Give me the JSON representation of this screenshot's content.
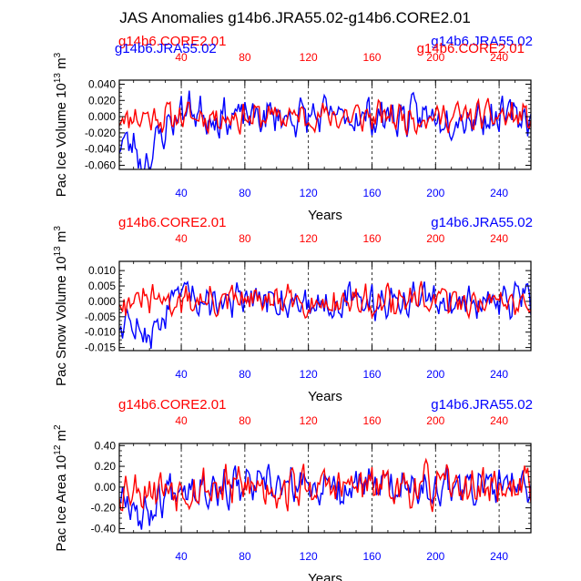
{
  "title": "JAS Anomalies g14b6.JRA55.02-g14b6.CORE2.01",
  "colors": {
    "core": "#ff0000",
    "jra": "#0000ff",
    "axis": "#000000"
  },
  "chart_data": [
    {
      "type": "line",
      "name": "pac-ice-volume",
      "ylabel_main": "Pac Ice Volume 10",
      "ylabel_exp": "13",
      "ylabel_unit": " m",
      "ylabel_unit_exp": "3",
      "xlabel": "Years",
      "xlim": [
        1,
        260
      ],
      "ylim": [
        -0.065,
        0.045
      ],
      "yticks": [
        -0.06,
        -0.04,
        -0.02,
        0.0,
        0.02,
        0.04
      ],
      "ytick_labels": [
        "-0.060",
        "-0.040",
        "-0.020",
        "0.000",
        "0.020",
        "0.040"
      ],
      "xticks": [
        40,
        80,
        120,
        160,
        200,
        240
      ],
      "xtick_labels": [
        "40",
        "80",
        "120",
        "160",
        "200",
        "240"
      ],
      "gridlines": [
        40,
        80,
        120,
        160,
        200,
        240
      ],
      "series_labels": {
        "top_left": "g14b6.CORE2.01",
        "top_right": "g14b6.JRA55.02",
        "overlap_left": "g14b6.JRA55.02",
        "overlap_right": "g14b6.CORE2.01"
      },
      "series": [
        {
          "name": "g14b6.CORE2.01",
          "color": "#ff0000",
          "seed": 11,
          "amp": 0.014,
          "osc": 0.006,
          "trend": []
        },
        {
          "name": "g14b6.JRA55.02",
          "color": "#0000ff",
          "seed": 23,
          "amp": 0.018,
          "osc": 0.006,
          "trend": [
            [
              1,
              -0.03
            ],
            [
              10,
              -0.035
            ],
            [
              15,
              -0.055
            ],
            [
              20,
              -0.05
            ],
            [
              28,
              -0.02
            ],
            [
              38,
              0.005
            ],
            [
              45,
              0.01
            ],
            [
              60,
              0.0
            ]
          ]
        }
      ]
    },
    {
      "type": "line",
      "name": "pac-snow-volume",
      "ylabel_main": "Pac Snow Volume 10",
      "ylabel_exp": "13",
      "ylabel_unit": " m",
      "ylabel_unit_exp": "3",
      "xlabel": "Years",
      "xlim": [
        1,
        260
      ],
      "ylim": [
        -0.016,
        0.013
      ],
      "yticks": [
        -0.015,
        -0.01,
        -0.005,
        0.0,
        0.005,
        0.01
      ],
      "ytick_labels": [
        "-0.015",
        "-0.010",
        "-0.005",
        "0.000",
        "0.005",
        "0.010"
      ],
      "xticks": [
        40,
        80,
        120,
        160,
        200,
        240
      ],
      "xtick_labels": [
        "40",
        "80",
        "120",
        "160",
        "200",
        "240"
      ],
      "gridlines": [
        40,
        80,
        120,
        160,
        200,
        240
      ],
      "series_labels": {
        "top_left": "g14b6.CORE2.01",
        "top_right": "g14b6.JRA55.02"
      },
      "series": [
        {
          "name": "g14b6.CORE2.01",
          "color": "#ff0000",
          "seed": 31,
          "amp": 0.0038,
          "osc": 0.0018,
          "trend": []
        },
        {
          "name": "g14b6.JRA55.02",
          "color": "#0000ff",
          "seed": 47,
          "amp": 0.0045,
          "osc": 0.0018,
          "trend": [
            [
              1,
              -0.006
            ],
            [
              10,
              -0.008
            ],
            [
              15,
              -0.012
            ],
            [
              22,
              -0.01
            ],
            [
              30,
              -0.004
            ],
            [
              40,
              0.002
            ],
            [
              48,
              0.002
            ],
            [
              60,
              0.0
            ]
          ]
        }
      ]
    },
    {
      "type": "line",
      "name": "pac-ice-area",
      "ylabel_main": "Pac Ice Area 10",
      "ylabel_exp": "12",
      "ylabel_unit": " m",
      "ylabel_unit_exp": "2",
      "xlabel": "Years",
      "xlim": [
        1,
        260
      ],
      "ylim": [
        -0.44,
        0.42
      ],
      "yticks": [
        -0.4,
        -0.2,
        0.0,
        0.2,
        0.4
      ],
      "ytick_labels": [
        "-0.40",
        "-0.20",
        "0.00",
        "0.20",
        "0.40"
      ],
      "xticks": [
        40,
        80,
        120,
        160,
        200,
        240
      ],
      "xtick_labels": [
        "40",
        "80",
        "120",
        "160",
        "200",
        "240"
      ],
      "gridlines": [
        40,
        80,
        120,
        160,
        200,
        240
      ],
      "series_labels": {
        "top_left": "g14b6.CORE2.01",
        "top_right": "g14b6.JRA55.02"
      },
      "series": [
        {
          "name": "g14b6.CORE2.01",
          "color": "#ff0000",
          "seed": 53,
          "amp": 0.16,
          "osc": 0.06,
          "trend": []
        },
        {
          "name": "g14b6.JRA55.02",
          "color": "#0000ff",
          "seed": 67,
          "amp": 0.14,
          "osc": 0.06,
          "trend": [
            [
              1,
              -0.05
            ],
            [
              8,
              -0.1
            ],
            [
              15,
              -0.3
            ],
            [
              22,
              -0.2
            ],
            [
              30,
              -0.05
            ],
            [
              40,
              0.05
            ],
            [
              60,
              0.0
            ]
          ]
        }
      ]
    }
  ]
}
